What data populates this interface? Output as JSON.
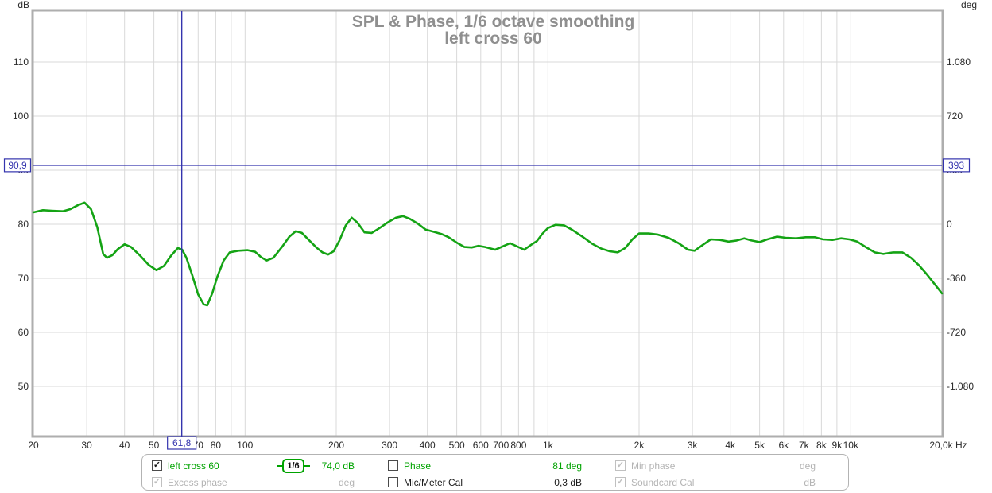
{
  "title": {
    "line1": "SPL & Phase, 1/6 octave smoothing",
    "line2": "left cross 60"
  },
  "axes": {
    "left_unit": "dB",
    "right_unit": "deg",
    "left_ticks": [
      110,
      100,
      90,
      80,
      70,
      60,
      50
    ],
    "right_ticks": [
      {
        "deg": 1080,
        "label": "1.080"
      },
      {
        "deg": 720,
        "label": "720"
      },
      {
        "deg": 360,
        "label": "360"
      },
      {
        "deg": 0,
        "label": "0"
      },
      {
        "deg": -360,
        "label": "-360"
      },
      {
        "deg": -720,
        "label": "-720"
      },
      {
        "deg": -1080,
        "label": "-1.080"
      }
    ],
    "freq_ticks": [
      {
        "f": 20,
        "label": "20"
      },
      {
        "f": 30,
        "label": "30"
      },
      {
        "f": 40,
        "label": "40"
      },
      {
        "f": 50,
        "label": "50"
      },
      {
        "f": 60,
        "label": "60"
      },
      {
        "f": 70,
        "label": "70"
      },
      {
        "f": 80,
        "label": "80"
      },
      {
        "f": 100,
        "label": "100"
      },
      {
        "f": 200,
        "label": "200"
      },
      {
        "f": 300,
        "label": "300"
      },
      {
        "f": 400,
        "label": "400"
      },
      {
        "f": 500,
        "label": "500"
      },
      {
        "f": 600,
        "label": "600"
      },
      {
        "f": 700,
        "label": "700"
      },
      {
        "f": 800,
        "label": "800"
      },
      {
        "f": 1000,
        "label": "1k"
      },
      {
        "f": 2000,
        "label": "2k"
      },
      {
        "f": 3000,
        "label": "3k"
      },
      {
        "f": 4000,
        "label": "4k"
      },
      {
        "f": 5000,
        "label": "5k"
      },
      {
        "f": 6000,
        "label": "6k"
      },
      {
        "f": 7000,
        "label": "7k"
      },
      {
        "f": 8000,
        "label": "8k"
      },
      {
        "f": 9000,
        "label": "9k"
      },
      {
        "f": 10000,
        "label": "10k"
      },
      {
        "f": 20000,
        "label": "20,0k Hz"
      }
    ]
  },
  "cursor": {
    "freq_hz": 61.8,
    "freq_label": "61,8",
    "spl_db": 90.9,
    "spl_label": "90,9",
    "phase_deg": 393,
    "phase_label": "393"
  },
  "colors": {
    "trace": "#14a314",
    "grid": "#d9d9d9",
    "border": "#aeaeae",
    "title": "#8f8f8f",
    "tick_text": "#2b2b2b",
    "cursor_blue": "#3434ae",
    "green_text": "#00a300",
    "disabled_gray": "#b4b4b4"
  },
  "legend": {
    "trace_label": "left cross 60",
    "trace_checked": true,
    "smoothing_badge": "1/6",
    "trace_level": "74,0 dB",
    "phase_label": "Phase",
    "phase_checked": false,
    "phase_level": "81 deg",
    "min_phase_label": "Min phase",
    "min_phase_checked": true,
    "min_phase_disabled": true,
    "min_phase_unit": "deg",
    "excess_phase_label": "Excess phase",
    "excess_phase_checked": true,
    "excess_phase_disabled": true,
    "excess_phase_unit": "deg",
    "mic_cal_label": "Mic/Meter Cal",
    "mic_cal_checked": false,
    "mic_cal_level": "0,3 dB",
    "soundcard_cal_label": "Soundcard Cal",
    "soundcard_cal_checked": true,
    "soundcard_cal_disabled": true,
    "soundcard_cal_unit": "dB",
    "check_glyph": "✓"
  },
  "chart_data": {
    "type": "line",
    "title": "SPL & Phase, 1/6 octave smoothing",
    "subtitle": "left cross 60",
    "xlabel": "Hz",
    "ylabel_left": "dB",
    "ylabel_right": "deg",
    "x_scale": "log",
    "xlim": [
      20,
      20000
    ],
    "ylim_left_db": [
      40.5,
      119.5
    ],
    "right_axis_deg_per_10db": 360,
    "right_axis_zero_at_db": 80,
    "grid": true,
    "legend_position": "bottom",
    "cursor": {
      "freq_hz": 61.8,
      "spl_db": 90.9,
      "phase_deg": 393
    },
    "series": [
      {
        "name": "left cross 60",
        "color": "#14a314",
        "points": [
          [
            20,
            82.2
          ],
          [
            21.5,
            82.6
          ],
          [
            23,
            82.5
          ],
          [
            25,
            82.4
          ],
          [
            26.5,
            82.8
          ],
          [
            28,
            83.5
          ],
          [
            29.5,
            84.0
          ],
          [
            31,
            82.8
          ],
          [
            32.5,
            79.5
          ],
          [
            34,
            74.5
          ],
          [
            35,
            73.8
          ],
          [
            36.5,
            74.3
          ],
          [
            38,
            75.4
          ],
          [
            40,
            76.3
          ],
          [
            42,
            75.8
          ],
          [
            45,
            74.2
          ],
          [
            48,
            72.5
          ],
          [
            51,
            71.5
          ],
          [
            54,
            72.3
          ],
          [
            57,
            74.2
          ],
          [
            60,
            75.6
          ],
          [
            62,
            75.3
          ],
          [
            64,
            73.8
          ],
          [
            67,
            70.5
          ],
          [
            70,
            67.0
          ],
          [
            73,
            65.2
          ],
          [
            75,
            65.0
          ],
          [
            78,
            67.3
          ],
          [
            81,
            70.3
          ],
          [
            85,
            73.3
          ],
          [
            89,
            74.8
          ],
          [
            95,
            75.1
          ],
          [
            102,
            75.2
          ],
          [
            108,
            74.9
          ],
          [
            113,
            73.9
          ],
          [
            118,
            73.3
          ],
          [
            124,
            73.8
          ],
          [
            132,
            75.7
          ],
          [
            140,
            77.7
          ],
          [
            147,
            78.7
          ],
          [
            154,
            78.4
          ],
          [
            163,
            77.0
          ],
          [
            172,
            75.7
          ],
          [
            180,
            74.8
          ],
          [
            188,
            74.4
          ],
          [
            196,
            75.0
          ],
          [
            205,
            77.0
          ],
          [
            215,
            79.8
          ],
          [
            225,
            81.2
          ],
          [
            235,
            80.3
          ],
          [
            248,
            78.5
          ],
          [
            262,
            78.4
          ],
          [
            278,
            79.3
          ],
          [
            295,
            80.3
          ],
          [
            315,
            81.2
          ],
          [
            332,
            81.5
          ],
          [
            350,
            81.0
          ],
          [
            372,
            80.1
          ],
          [
            395,
            79.0
          ],
          [
            420,
            78.6
          ],
          [
            445,
            78.2
          ],
          [
            470,
            77.6
          ],
          [
            500,
            76.6
          ],
          [
            530,
            75.8
          ],
          [
            560,
            75.7
          ],
          [
            590,
            76.0
          ],
          [
            620,
            75.8
          ],
          [
            670,
            75.3
          ],
          [
            750,
            76.5
          ],
          [
            835,
            75.3
          ],
          [
            880,
            76.2
          ],
          [
            920,
            76.9
          ],
          [
            960,
            78.3
          ],
          [
            1000,
            79.3
          ],
          [
            1060,
            79.9
          ],
          [
            1130,
            79.8
          ],
          [
            1200,
            79.0
          ],
          [
            1300,
            77.7
          ],
          [
            1400,
            76.4
          ],
          [
            1500,
            75.5
          ],
          [
            1600,
            75.0
          ],
          [
            1700,
            74.8
          ],
          [
            1800,
            75.6
          ],
          [
            1900,
            77.2
          ],
          [
            2000,
            78.3
          ],
          [
            2150,
            78.3
          ],
          [
            2300,
            78.1
          ],
          [
            2500,
            77.5
          ],
          [
            2700,
            76.5
          ],
          [
            2900,
            75.3
          ],
          [
            3050,
            75.1
          ],
          [
            3250,
            76.2
          ],
          [
            3450,
            77.2
          ],
          [
            3700,
            77.1
          ],
          [
            3950,
            76.8
          ],
          [
            4200,
            77.0
          ],
          [
            4450,
            77.4
          ],
          [
            4700,
            77.0
          ],
          [
            5000,
            76.7
          ],
          [
            5300,
            77.2
          ],
          [
            5700,
            77.7
          ],
          [
            6100,
            77.5
          ],
          [
            6600,
            77.4
          ],
          [
            7100,
            77.6
          ],
          [
            7600,
            77.6
          ],
          [
            8100,
            77.2
          ],
          [
            8700,
            77.1
          ],
          [
            9300,
            77.4
          ],
          [
            9900,
            77.2
          ],
          [
            10500,
            76.8
          ],
          [
            11200,
            75.8
          ],
          [
            12000,
            74.8
          ],
          [
            12800,
            74.5
          ],
          [
            13800,
            74.8
          ],
          [
            14800,
            74.8
          ],
          [
            15800,
            73.8
          ],
          [
            16800,
            72.4
          ],
          [
            17800,
            70.8
          ],
          [
            18800,
            69.1
          ],
          [
            19500,
            68.0
          ],
          [
            20000,
            67.2
          ]
        ]
      }
    ]
  }
}
